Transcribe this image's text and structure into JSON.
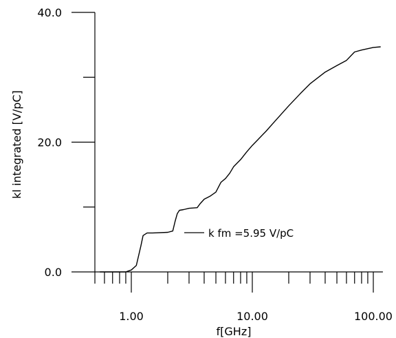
{
  "chart_data": {
    "type": "line",
    "title": "",
    "xlabel": "f[GHz]",
    "ylabel": "kl integrated [V/pC]",
    "x_scale": "log",
    "xlim": [
      0.5,
      120
    ],
    "ylim": [
      0,
      40
    ],
    "x_tick_labels": [
      {
        "value": 1,
        "label": "1.00"
      },
      {
        "value": 10,
        "label": "10.00"
      },
      {
        "value": 100,
        "label": "100.00"
      }
    ],
    "y_tick_labels": [
      {
        "value": 0,
        "label": "0.0"
      },
      {
        "value": 20,
        "label": "20.0"
      },
      {
        "value": 40,
        "label": "40.0"
      }
    ],
    "y_minor_ticks": [
      10,
      30
    ],
    "grid": false,
    "series": [
      {
        "x": [
          0.55,
          0.9,
          1.0,
          1.1,
          1.2,
          1.25,
          1.35,
          1.5,
          2.0,
          2.2,
          2.3,
          2.4,
          2.5,
          2.7,
          3.0,
          3.5,
          3.7,
          4.0,
          4.5,
          5.0,
          5.5,
          6.0,
          6.5,
          7.0,
          8.0,
          9.0,
          10.0,
          11.0,
          13.0,
          15.0,
          20.0,
          25.0,
          30.0,
          40.0,
          50.0,
          60.0,
          70.0,
          80.0,
          100.0,
          115.0
        ],
        "y": [
          0.0,
          0.0,
          0.3,
          1.0,
          4.0,
          5.6,
          6.0,
          6.0,
          6.1,
          6.3,
          7.8,
          9.0,
          9.5,
          9.6,
          9.8,
          9.9,
          10.5,
          11.2,
          11.7,
          12.3,
          13.8,
          14.4,
          15.2,
          16.2,
          17.3,
          18.5,
          19.5,
          20.3,
          21.7,
          23.0,
          25.6,
          27.5,
          29.0,
          30.8,
          31.8,
          32.6,
          33.9,
          34.2,
          34.6,
          34.7
        ]
      }
    ],
    "annotation": "k fm =5.95 V/pC"
  }
}
